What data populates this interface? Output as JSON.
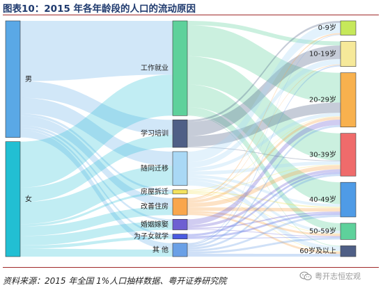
{
  "header": {
    "title": "图表10：2015 年各年龄段的人口的流动原因"
  },
  "footer": {
    "source": "资料来源：2015 年全国 1%人口抽样数据、粤开证券研究院",
    "watermark": "粤开志恒宏观",
    "watermark_icon": "wechat-icon"
  },
  "chart_data": {
    "type": "sankey",
    "title": "图表10：2015 年各年龄段的人口的流动原因",
    "columns": [
      [
        {
          "id": "male",
          "label": "男",
          "color": "#5aa8e6"
        },
        {
          "id": "female",
          "label": "女",
          "color": "#22bfd3"
        }
      ],
      [
        {
          "id": "work",
          "label": "工作就业",
          "color": "#5ed19b"
        },
        {
          "id": "study",
          "label": "学习培训",
          "color": "#4f5f86"
        },
        {
          "id": "family",
          "label": "随同迁移",
          "color": "#a9d8f5"
        },
        {
          "id": "demolish",
          "label": "房屋拆迁",
          "color": "#f3e25e"
        },
        {
          "id": "housing",
          "label": "改善住房",
          "color": "#f9a64c"
        },
        {
          "id": "marriage",
          "label": "婚姻嫁娶",
          "color": "#6e5fd2"
        },
        {
          "id": "children",
          "label": "为子女就学",
          "color": "#4a5be0"
        },
        {
          "id": "other",
          "label": "其 他",
          "color": "#6aa0e6"
        }
      ],
      [
        {
          "id": "a0",
          "label": "0-9岁",
          "color": "#c6e85a"
        },
        {
          "id": "a10",
          "label": "10-19岁",
          "color": "#f6e99a"
        },
        {
          "id": "a20",
          "label": "20-29岁",
          "color": "#f8b14e"
        },
        {
          "id": "a30",
          "label": "30-39岁",
          "color": "#ef6b6b"
        },
        {
          "id": "a40",
          "label": "40-49岁",
          "color": "#4f9be6"
        },
        {
          "id": "a50",
          "label": "50-59岁",
          "color": "#5ed19b"
        },
        {
          "id": "a60",
          "label": "60岁及以上",
          "color": "#4f5f86"
        }
      ]
    ],
    "links": [
      {
        "source": "male",
        "target": "work",
        "value": 76
      },
      {
        "source": "male",
        "target": "study",
        "value": 21
      },
      {
        "source": "male",
        "target": "family",
        "value": 20
      },
      {
        "source": "male",
        "target": "demolish",
        "value": 3
      },
      {
        "source": "male",
        "target": "housing",
        "value": 12
      },
      {
        "source": "male",
        "target": "marriage",
        "value": 3
      },
      {
        "source": "male",
        "target": "children",
        "value": 3
      },
      {
        "source": "male",
        "target": "other",
        "value": 9
      },
      {
        "source": "female",
        "target": "work",
        "value": 58
      },
      {
        "source": "female",
        "target": "study",
        "value": 18
      },
      {
        "source": "female",
        "target": "family",
        "value": 28
      },
      {
        "source": "female",
        "target": "demolish",
        "value": 3
      },
      {
        "source": "female",
        "target": "housing",
        "value": 12
      },
      {
        "source": "female",
        "target": "marriage",
        "value": 12
      },
      {
        "source": "female",
        "target": "children",
        "value": 4
      },
      {
        "source": "female",
        "target": "other",
        "value": 10
      },
      {
        "source": "work",
        "target": "a10",
        "value": 6
      },
      {
        "source": "work",
        "target": "a20",
        "value": 44
      },
      {
        "source": "work",
        "target": "a30",
        "value": 40
      },
      {
        "source": "work",
        "target": "a40",
        "value": 32
      },
      {
        "source": "work",
        "target": "a50",
        "value": 11
      },
      {
        "source": "work",
        "target": "a60",
        "value": 1
      },
      {
        "source": "study",
        "target": "a0",
        "value": 3
      },
      {
        "source": "study",
        "target": "a10",
        "value": 20
      },
      {
        "source": "study",
        "target": "a20",
        "value": 15
      },
      {
        "source": "study",
        "target": "a30",
        "value": 1
      },
      {
        "source": "family",
        "target": "a0",
        "value": 15
      },
      {
        "source": "family",
        "target": "a10",
        "value": 8
      },
      {
        "source": "family",
        "target": "a20",
        "value": 5
      },
      {
        "source": "family",
        "target": "a30",
        "value": 5
      },
      {
        "source": "family",
        "target": "a40",
        "value": 4
      },
      {
        "source": "family",
        "target": "a50",
        "value": 4
      },
      {
        "source": "family",
        "target": "a60",
        "value": 7
      },
      {
        "source": "demolish",
        "target": "a20",
        "value": 1
      },
      {
        "source": "demolish",
        "target": "a30",
        "value": 1
      },
      {
        "source": "demolish",
        "target": "a40",
        "value": 2
      },
      {
        "source": "demolish",
        "target": "a50",
        "value": 1
      },
      {
        "source": "demolish",
        "target": "a60",
        "value": 1
      },
      {
        "source": "housing",
        "target": "a0",
        "value": 2
      },
      {
        "source": "housing",
        "target": "a10",
        "value": 1
      },
      {
        "source": "housing",
        "target": "a20",
        "value": 4
      },
      {
        "source": "housing",
        "target": "a30",
        "value": 6
      },
      {
        "source": "housing",
        "target": "a40",
        "value": 5
      },
      {
        "source": "housing",
        "target": "a50",
        "value": 3
      },
      {
        "source": "housing",
        "target": "a60",
        "value": 3
      },
      {
        "source": "marriage",
        "target": "a20",
        "value": 8
      },
      {
        "source": "marriage",
        "target": "a30",
        "value": 4
      },
      {
        "source": "marriage",
        "target": "a40",
        "value": 2
      },
      {
        "source": "marriage",
        "target": "a50",
        "value": 1
      },
      {
        "source": "children",
        "target": "a30",
        "value": 3
      },
      {
        "source": "children",
        "target": "a40",
        "value": 3
      },
      {
        "source": "children",
        "target": "a50",
        "value": 1
      },
      {
        "source": "other",
        "target": "a0",
        "value": 1
      },
      {
        "source": "other",
        "target": "a10",
        "value": 2
      },
      {
        "source": "other",
        "target": "a20",
        "value": 3
      },
      {
        "source": "other",
        "target": "a30",
        "value": 3
      },
      {
        "source": "other",
        "target": "a40",
        "value": 3
      },
      {
        "source": "other",
        "target": "a50",
        "value": 3
      },
      {
        "source": "other",
        "target": "a60",
        "value": 4
      }
    ]
  }
}
